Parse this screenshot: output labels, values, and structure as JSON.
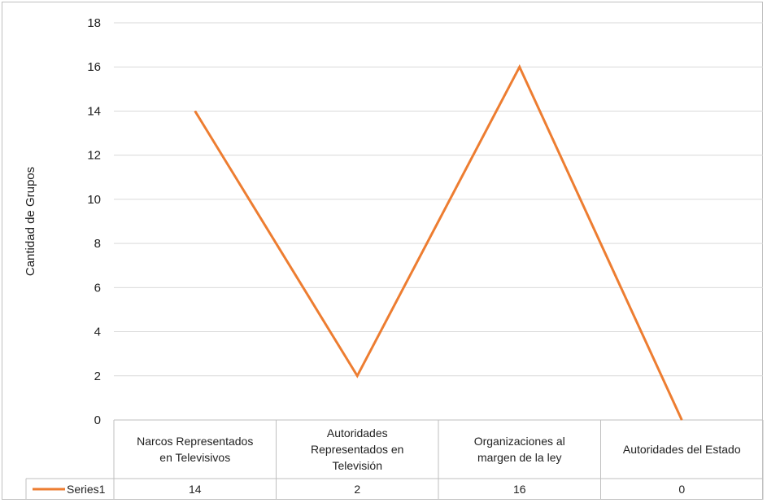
{
  "chart_data": {
    "type": "line",
    "title": "",
    "xlabel": "",
    "ylabel": "Cantidad de Grupos",
    "ylim": [
      0,
      18
    ],
    "yticks": [
      0,
      2,
      4,
      6,
      8,
      10,
      12,
      14,
      16,
      18
    ],
    "categories": [
      [
        "Narcos Representados",
        "en Televisivos"
      ],
      [
        "Autoridades",
        "Representados en",
        "Televisión"
      ],
      [
        "Organizaciones al",
        "margen de la ley"
      ],
      [
        "Autoridades del Estado"
      ]
    ],
    "series": [
      {
        "name": "Series1",
        "values": [
          14,
          2,
          16,
          0
        ],
        "color": "#ED7D31"
      }
    ],
    "grid": true,
    "data_table": true
  }
}
